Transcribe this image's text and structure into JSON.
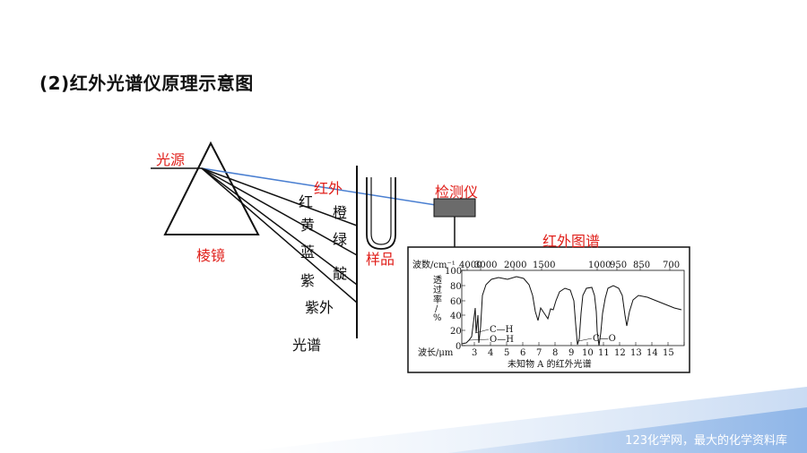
{
  "title": "(2)红外光谱仪原理示意图",
  "labels": {
    "light_source": "光源",
    "prism": "棱镜",
    "infrared": "红外",
    "detector": "检测仪",
    "sample": "样品",
    "ir_spectrum": "红外图谱",
    "spectrum": "光谱",
    "colors": [
      "红",
      "橙",
      "黄",
      "绿",
      "蓝",
      "靛",
      "紫",
      "紫外"
    ]
  },
  "chart": {
    "wavenumber_label": "波数/cm⁻¹",
    "wavenumber_ticks": [
      "4000",
      "3000",
      "2000",
      "1500",
      "1000",
      "950",
      "850",
      "700"
    ],
    "transmittance_label": [
      "透",
      "过",
      "率",
      "/",
      "%"
    ],
    "y_ticks": [
      "100",
      "80",
      "60",
      "40",
      "20",
      "0"
    ],
    "wavelength_label": "波长/μm",
    "wavelength_ticks": [
      "3",
      "4",
      "5",
      "6",
      "7",
      "8",
      "9",
      "10",
      "11",
      "12",
      "13",
      "14",
      "15"
    ],
    "annotations": [
      "C—H",
      "O—H",
      "C—O"
    ],
    "caption": "未知物 A 的红外光谱"
  },
  "footer": "123化学网，最大的化学资料库",
  "colors": {
    "accent_red": "#e0201b",
    "beam_blue": "#4a7fd1",
    "detector_gray": "#6b6b6b"
  }
}
